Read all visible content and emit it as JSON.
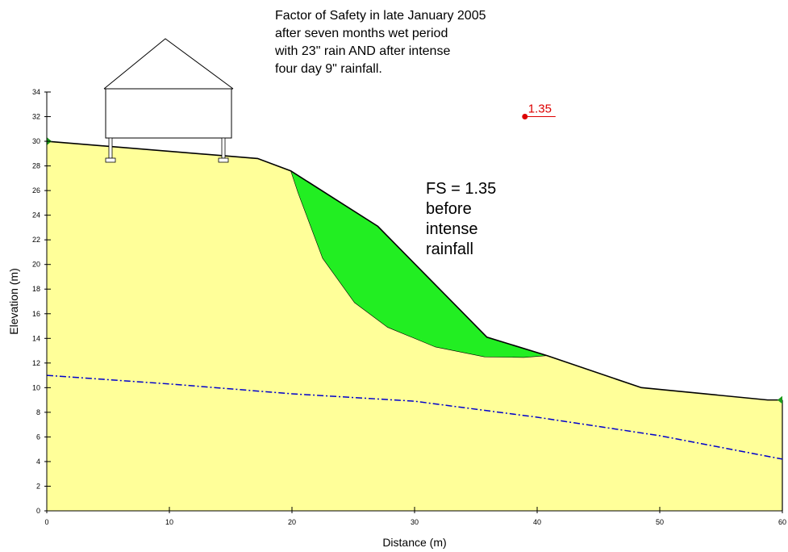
{
  "chart_data": {
    "type": "slope",
    "title_lines": [
      "Factor of Safety in late January 2005",
      "after seven months wet period",
      "with 23\" rain AND after intense",
      "four day 9\" rainfall."
    ],
    "annotation_lines": [
      "FS = 1.35",
      "before",
      "intense",
      "rainfall"
    ],
    "x_label": "Distance (m)",
    "y_label": "Elevation (m)",
    "xlim": [
      0,
      60
    ],
    "ylim": [
      0,
      34
    ],
    "xticks": [
      0,
      10,
      20,
      30,
      40,
      50,
      60
    ],
    "yticks": [
      0,
      2,
      4,
      6,
      8,
      10,
      12,
      14,
      16,
      18,
      20,
      22,
      24,
      26,
      28,
      30,
      32,
      34
    ],
    "ground": {
      "color": "#ffff99",
      "x": [
        0,
        17.2,
        19.9,
        27.0,
        35.9,
        40.8,
        48.5,
        58.8,
        60
      ],
      "y": [
        30,
        28.6,
        27.6,
        23.1,
        14.1,
        12.6,
        10.0,
        9.0,
        9.0
      ]
    },
    "slip_surface": {
      "color": "#22ee22",
      "x": [
        19.9,
        20.5,
        22.5,
        25.1,
        27.8,
        31.7,
        35.7,
        38.9,
        40.8
      ],
      "y": [
        27.6,
        25.8,
        20.5,
        16.9,
        14.9,
        13.3,
        12.5,
        12.45,
        12.6
      ]
    },
    "water_table": {
      "color": "#0000cc",
      "x": [
        0,
        10,
        20,
        30,
        40,
        50,
        60
      ],
      "y": [
        11.0,
        10.3,
        9.5,
        8.9,
        7.6,
        6.1,
        4.2
      ]
    },
    "center": {
      "color": "#dd0000",
      "x": 39,
      "y": 32,
      "fs": 1.35
    }
  }
}
